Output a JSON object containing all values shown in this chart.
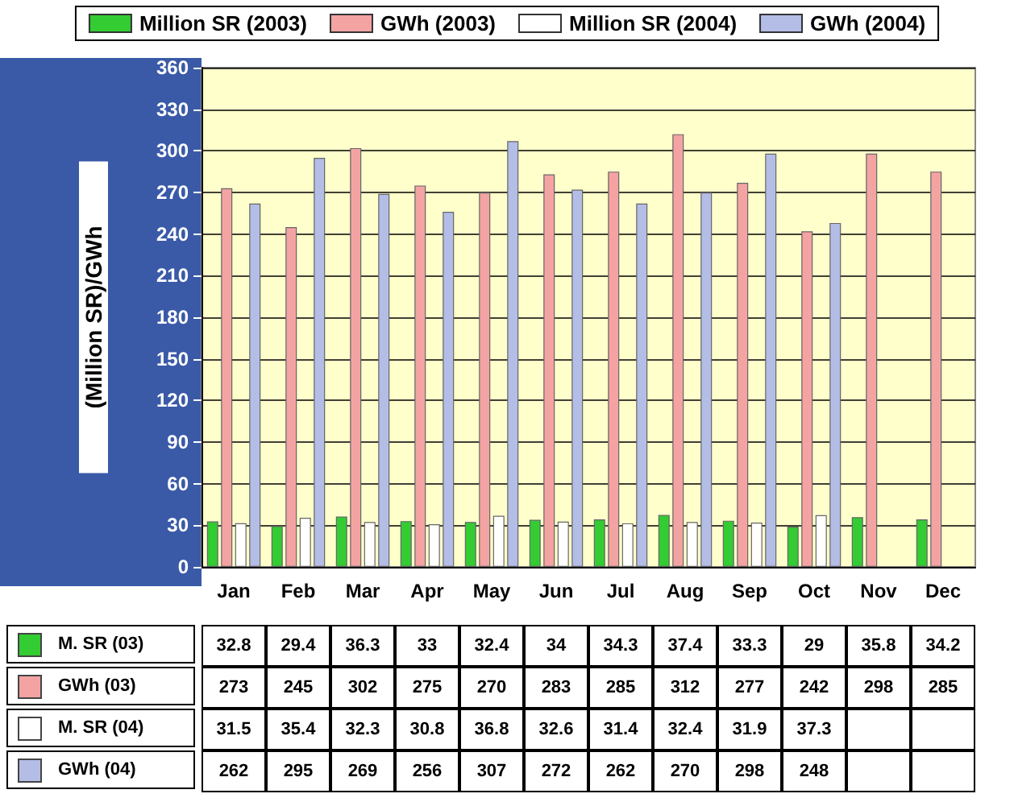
{
  "chart_data": {
    "type": "bar",
    "ylabel": "(Million SR)/GWh",
    "categories": [
      "Jan",
      "Feb",
      "Mar",
      "Apr",
      "May",
      "Jun",
      "Jul",
      "Aug",
      "Sep",
      "Oct",
      "Nov",
      "Dec"
    ],
    "series": [
      {
        "name": "Million SR (2003)",
        "color": "#33cc33",
        "values": [
          32.8,
          29.4,
          36.3,
          33,
          32.4,
          34,
          34.3,
          37.4,
          33.3,
          29,
          35.8,
          34.2
        ]
      },
      {
        "name": "GWh (2003)",
        "color": "#f4a3a3",
        "values": [
          273,
          245,
          302,
          275,
          270,
          283,
          285,
          312,
          277,
          242,
          298,
          285
        ]
      },
      {
        "name": "Million SR (2004)",
        "color": "#ffffff",
        "values": [
          31.5,
          35.4,
          32.3,
          30.8,
          36.8,
          32.6,
          31.4,
          32.4,
          31.9,
          37.3,
          null,
          null
        ]
      },
      {
        "name": "GWh (2004)",
        "color": "#b4bde6",
        "values": [
          262,
          295,
          269,
          256,
          307,
          272,
          262,
          270,
          298,
          248,
          null,
          null
        ]
      }
    ],
    "annotations": [
      "M. SR (03)",
      "GWh (03)",
      "M. SR (04)",
      "GWh (04)"
    ],
    "ylim": [
      0,
      360
    ],
    "yticks": [
      0,
      30,
      60,
      90,
      120,
      150,
      180,
      210,
      240,
      270,
      300,
      330,
      360
    ],
    "grid": "y",
    "legend": "top",
    "data_labels": true
  }
}
